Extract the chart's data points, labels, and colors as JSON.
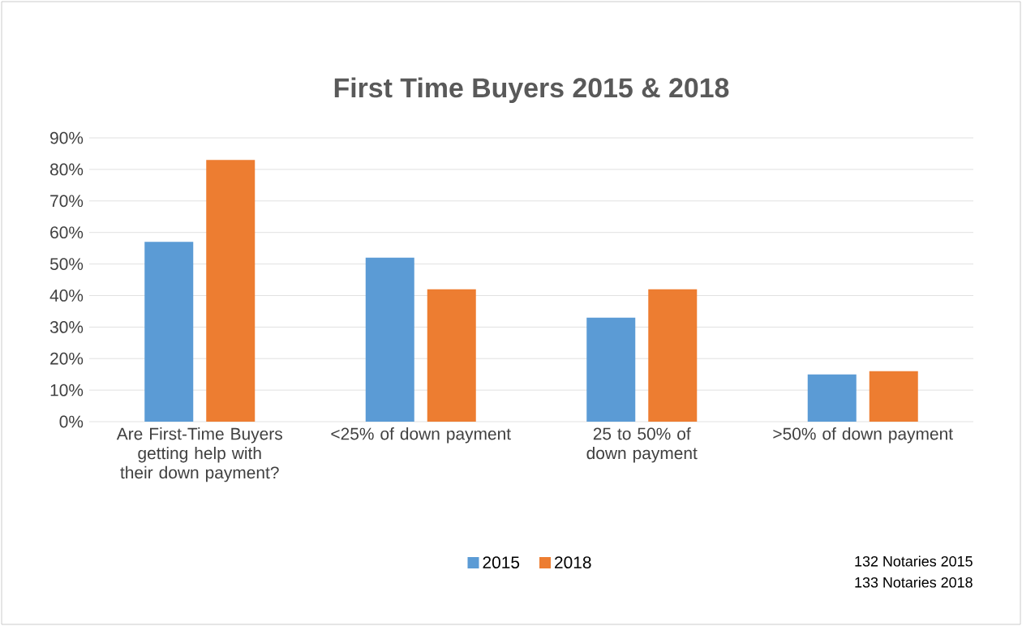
{
  "chart_data": {
    "type": "bar",
    "title": "First Time Buyers 2015 & 2018",
    "categories": [
      "Are First-Time Buyers getting help with their down payment?",
      "<25% of down payment",
      "25 to 50% of down payment",
      ">50% of down payment"
    ],
    "series": [
      {
        "name": "2015",
        "color": "#5b9bd5",
        "values": [
          57,
          52,
          33,
          15
        ]
      },
      {
        "name": "2018",
        "color": "#ed7d31",
        "values": [
          83,
          42,
          42,
          16
        ]
      }
    ],
    "ylim": [
      0,
      90
    ],
    "yticks": [
      {
        "value": 0,
        "label": "0%"
      },
      {
        "value": 10,
        "label": "10%"
      },
      {
        "value": 20,
        "label": "20%"
      },
      {
        "value": 30,
        "label": "30%"
      },
      {
        "value": 40,
        "label": "40%"
      },
      {
        "value": 50,
        "label": "50%"
      },
      {
        "value": 60,
        "label": "60%"
      },
      {
        "value": 70,
        "label": "70%"
      },
      {
        "value": 80,
        "label": "80%"
      },
      {
        "value": 90,
        "label": "90%"
      }
    ],
    "grid": "y",
    "legend": "bottom",
    "annotations": [
      "132 Notaries 2015",
      "133 Notaries 2018"
    ]
  }
}
